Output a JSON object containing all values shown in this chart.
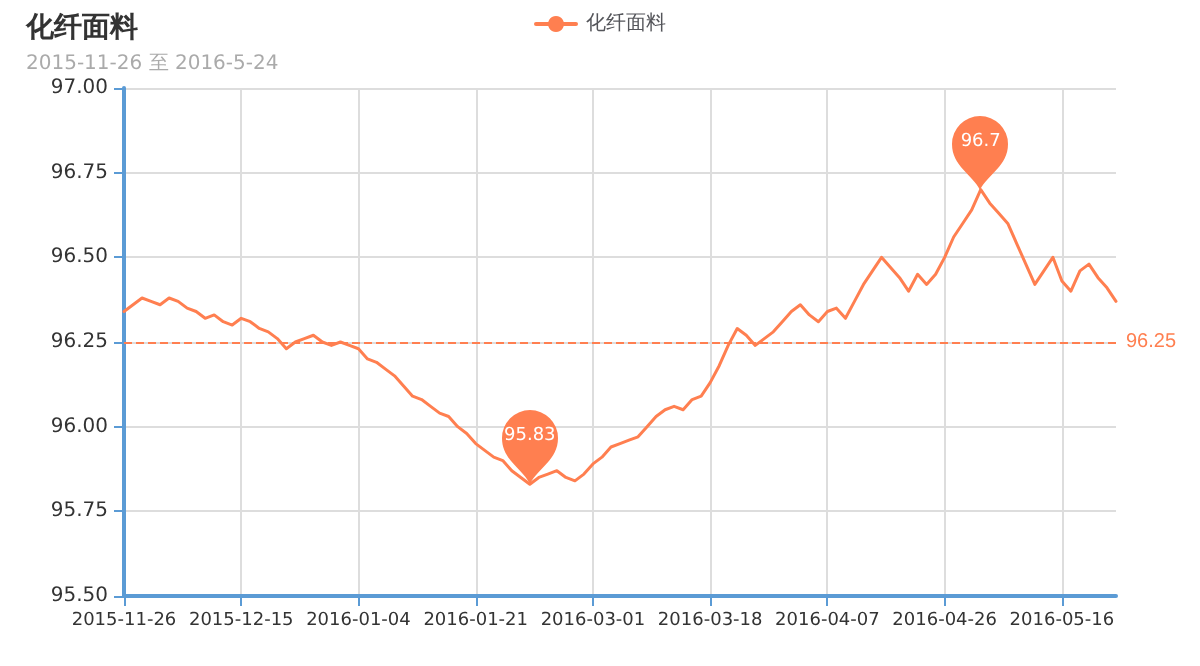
{
  "chart_data": {
    "type": "line",
    "title": "化纤面料",
    "subtitle": "2015-11-26 至 2016-5-24",
    "categories": [
      "2015-11-26",
      null,
      null,
      null,
      null,
      null,
      null,
      null,
      null,
      null,
      null,
      null,
      null,
      "2015-12-15",
      null,
      null,
      null,
      null,
      null,
      null,
      null,
      null,
      null,
      null,
      null,
      null,
      "2016-01-04",
      null,
      null,
      null,
      null,
      null,
      null,
      null,
      null,
      null,
      null,
      null,
      null,
      "2016-01-21",
      null,
      null,
      null,
      null,
      null,
      null,
      null,
      null,
      null,
      null,
      null,
      null,
      "2016-03-01",
      null,
      null,
      null,
      null,
      null,
      null,
      null,
      null,
      null,
      null,
      null,
      null,
      "2016-03-18",
      null,
      null,
      null,
      null,
      null,
      null,
      null,
      null,
      null,
      null,
      null,
      null,
      "2016-04-07",
      null,
      null,
      null,
      null,
      null,
      null,
      null,
      null,
      null,
      null,
      null,
      null,
      "2016-04-26",
      null,
      null,
      null,
      null,
      null,
      null,
      null,
      null,
      null,
      null,
      null,
      null,
      "2016-05-16",
      null,
      null,
      null,
      null,
      null,
      null
    ],
    "series": [
      {
        "name": "化纤面料",
        "color": "#ff7f50",
        "values": [
          96.34,
          96.36,
          96.38,
          96.37,
          96.36,
          96.38,
          96.37,
          96.35,
          96.34,
          96.32,
          96.33,
          96.31,
          96.3,
          96.32,
          96.31,
          96.29,
          96.28,
          96.26,
          96.23,
          96.25,
          96.26,
          96.27,
          96.25,
          96.24,
          96.25,
          96.24,
          96.23,
          96.2,
          96.19,
          96.17,
          96.15,
          96.12,
          96.09,
          96.08,
          96.06,
          96.04,
          96.03,
          96.0,
          95.98,
          95.95,
          95.93,
          95.91,
          95.9,
          95.87,
          95.85,
          95.83,
          95.85,
          95.86,
          95.87,
          95.85,
          95.84,
          95.86,
          95.89,
          95.91,
          95.94,
          95.95,
          95.96,
          95.97,
          96.0,
          96.03,
          96.05,
          96.06,
          96.05,
          96.08,
          96.09,
          96.13,
          96.18,
          96.24,
          96.29,
          96.27,
          96.24,
          96.26,
          96.28,
          96.31,
          96.34,
          96.36,
          96.33,
          96.31,
          96.34,
          96.35,
          96.32,
          96.37,
          96.42,
          96.46,
          96.5,
          96.47,
          96.44,
          96.4,
          96.45,
          96.42,
          96.45,
          96.5,
          96.56,
          96.6,
          96.64,
          96.7,
          96.66,
          96.63,
          96.6,
          96.54,
          96.48,
          96.42,
          96.46,
          96.5,
          96.43,
          96.4,
          96.46,
          96.48,
          96.44,
          96.41,
          96.37
        ]
      }
    ],
    "ylim": [
      95.5,
      97.0
    ],
    "yticks": [
      {
        "value": 95.5,
        "label": "95.50"
      },
      {
        "value": 95.75,
        "label": "95.75"
      },
      {
        "value": 96.0,
        "label": "96.00"
      },
      {
        "value": 96.25,
        "label": "96.25"
      },
      {
        "value": 96.5,
        "label": "96.50"
      },
      {
        "value": 96.75,
        "label": "96.75"
      },
      {
        "value": 97.0,
        "label": "97.00"
      }
    ],
    "annotations": [
      {
        "text": "96.7",
        "y": 96.7
      },
      {
        "text": "95.83",
        "y": 95.83
      }
    ],
    "ref_lines": [
      {
        "axis": "y",
        "value": 96.25,
        "label": "96.25",
        "color": "#ff7f50",
        "line_style": "dashed"
      }
    ],
    "grid": true,
    "legend": "top",
    "marker": "none",
    "line_style": "solid"
  }
}
